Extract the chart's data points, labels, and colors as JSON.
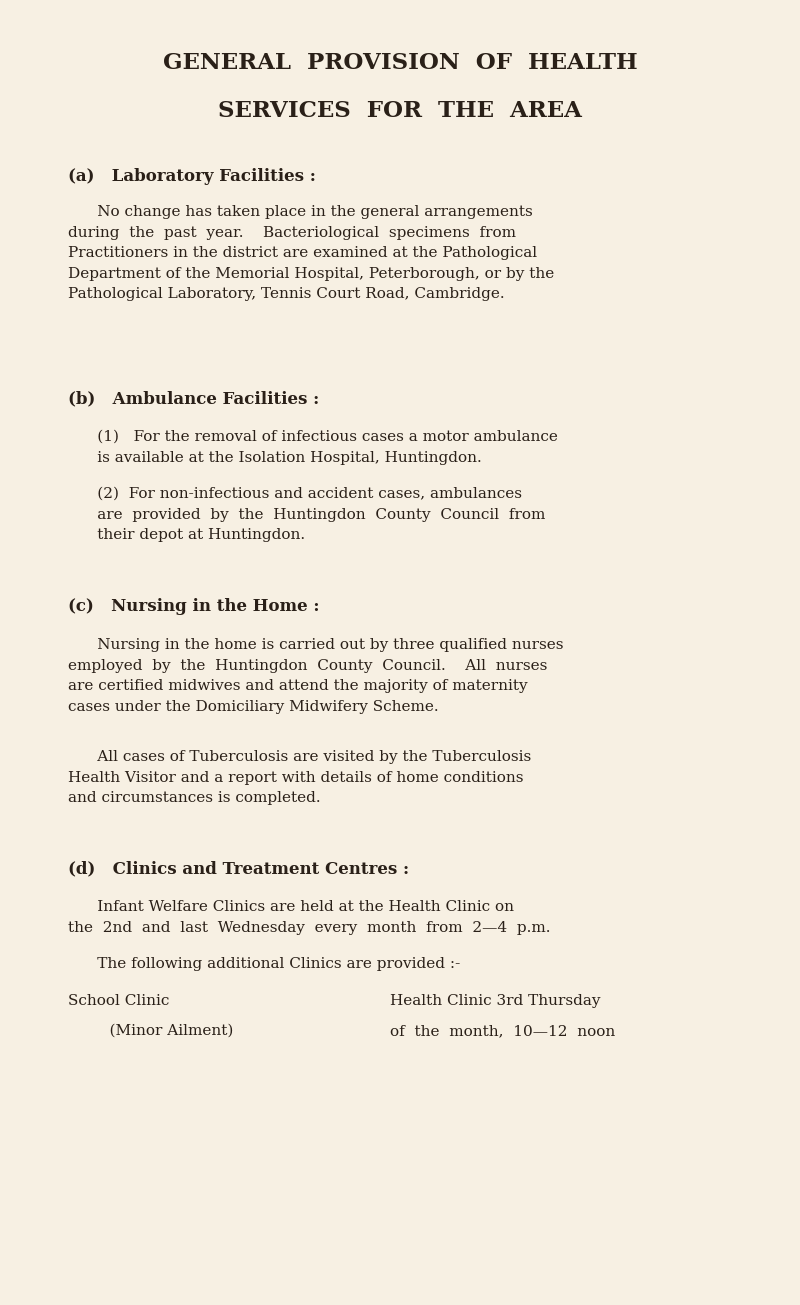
{
  "bg_color": "#f7f0e3",
  "text_color": "#2a2018",
  "title_line1": "GENERAL  PROVISION  OF  HEALTH",
  "title_line2": "SERVICES  FOR  THE  AREA",
  "section_a_header": "(a)   Laboratory Facilities :",
  "section_a_body": "      No change has taken place in the general arrangements\nduring  the  past  year.    Bacteriological  specimens  from\nPractitioners in the district are examined at the Pathological\nDepartment of the Memorial Hospital, Peterborough, or by the\nPathological Laboratory, Tennis Court Road, Cambridge.",
  "section_b_header": "(b)   Ambulance Facilities :",
  "section_b1": "      (1)   For the removal of infectious cases a motor ambulance\n      is available at the Isolation Hospital, Huntingdon.",
  "section_b2": "      (2)  For non-infectious and accident cases, ambulances\n      are  provided  by  the  Huntingdon  County  Council  from\n      their depot at Huntingdon.",
  "section_c_header": "(c)   Nursing in the Home :",
  "section_c_body1": "      Nursing in the home is carried out by three qualified nurses\nemployed  by  the  Huntingdon  County  Council.    All  nurses\nare certified midwives and attend the majority of maternity\ncases under the Domiciliary Midwifery Scheme.",
  "section_c_body2": "      All cases of Tuberculosis are visited by the Tuberculosis\nHealth Visitor and a report with details of home conditions\nand circumstances is completed.",
  "section_d_header": "(d)   Clinics and Treatment Centres :",
  "section_d_body1": "      Infant Welfare Clinics are held at the Health Clinic on\nthe  2nd  and  last  Wednesday  every  month  from  2—4  p.m.",
  "section_d_body2": "      The following additional Clinics are provided :-",
  "section_d_col1_line1": "School Clinic",
  "section_d_col1_line2": "    (Minor Ailment)",
  "section_d_col2_line1": "Health Clinic 3rd Thursday",
  "section_d_col2_line2": "of  the  month,  10—12  noon",
  "title_fontsize": 16.5,
  "header_fontsize": 12.0,
  "body_fontsize": 11.0
}
